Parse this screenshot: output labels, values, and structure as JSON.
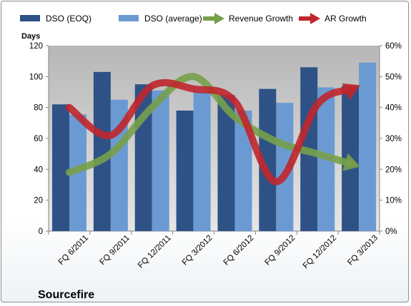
{
  "chart_data": {
    "type": "bar",
    "company": "Sourcefire",
    "ylabel_left": "Days",
    "ylim_left": [
      0,
      120
    ],
    "yticks_left": [
      "0",
      "20",
      "40",
      "60",
      "80",
      "100",
      "120"
    ],
    "ylim_right": [
      0,
      60
    ],
    "yticks_right": [
      "0%",
      "10%",
      "20%",
      "30%",
      "40%",
      "50%",
      "60%"
    ],
    "categories": [
      "FQ 6/2011",
      "FQ 9/2011",
      "FQ 12/2011",
      "FQ 3/2012",
      "FQ 6/2012",
      "FQ 9/2012",
      "FQ 12/2012",
      "FQ 3/2013"
    ],
    "series": [
      {
        "name": "DSO (EOQ)",
        "kind": "bar",
        "axis": "left",
        "color": "#2e5286",
        "values": [
          82,
          103,
          95,
          78,
          88,
          92,
          106,
          94
        ]
      },
      {
        "name": "DSO (average)",
        "kind": "bar",
        "axis": "left",
        "color": "#6b9ad3",
        "values": [
          75.5,
          85,
          91,
          90,
          78,
          83,
          93,
          109
        ]
      },
      {
        "name": "Revenue Growth",
        "kind": "arrow-line",
        "axis": "right",
        "color": "#77a04a",
        "values": [
          19,
          25,
          40,
          50,
          37,
          29,
          25,
          21
        ]
      },
      {
        "name": "AR Growth",
        "kind": "arrow-line",
        "axis": "right",
        "color": "#c0262c",
        "values": [
          40,
          31,
          47,
          46,
          42,
          16,
          41,
          47
        ]
      }
    ],
    "grid": false,
    "legend_position": "top"
  }
}
